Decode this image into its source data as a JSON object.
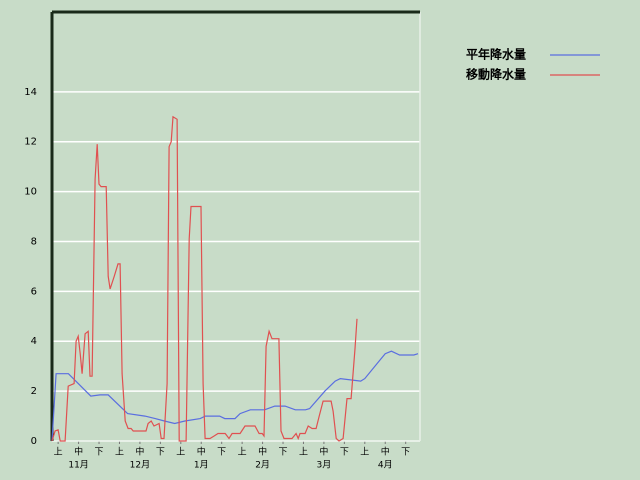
{
  "chart_data": {
    "type": "line",
    "xlim": [
      -3,
      177
    ],
    "xticks": [
      {
        "value": 0,
        "label": "上"
      },
      {
        "value": 10,
        "label": "中"
      },
      {
        "value": 20,
        "label": "下"
      },
      {
        "value": 30,
        "label": "上"
      },
      {
        "value": 40,
        "label": "中"
      },
      {
        "value": 50,
        "label": "下"
      },
      {
        "value": 60,
        "label": "上"
      },
      {
        "value": 70,
        "label": "中"
      },
      {
        "value": 80,
        "label": "下"
      },
      {
        "value": 90,
        "label": "上"
      },
      {
        "value": 100,
        "label": "中"
      },
      {
        "value": 110,
        "label": "下"
      },
      {
        "value": 120,
        "label": "上"
      },
      {
        "value": 130,
        "label": "中"
      },
      {
        "value": 140,
        "label": "下"
      },
      {
        "value": 150,
        "label": "上"
      },
      {
        "value": 160,
        "label": "中"
      },
      {
        "value": 170,
        "label": "下"
      }
    ],
    "month_labels": [
      {
        "value": 10,
        "label": "11月"
      },
      {
        "value": 40,
        "label": "12月"
      },
      {
        "value": 70,
        "label": "1月"
      },
      {
        "value": 100,
        "label": "2月"
      },
      {
        "value": 130,
        "label": "3月"
      },
      {
        "value": 160,
        "label": "4月"
      }
    ],
    "ylim": [
      0,
      17.2
    ],
    "yticks": [
      0,
      2,
      4,
      6,
      8,
      10,
      12,
      14
    ],
    "grid": true,
    "legend": "right",
    "series": [
      {
        "name": "平年降水量",
        "color": "#5a6ee0",
        "x": [
          -3,
          -1,
          5,
          16,
          20.5,
          24.5,
          34,
          42.5,
          47.5,
          52,
          57,
          62,
          69.5,
          72,
          79,
          81.5,
          86.5,
          89,
          94,
          101,
          106,
          111,
          116,
          121,
          123,
          130.5,
          135.5,
          138,
          148,
          150,
          160,
          163,
          167,
          174,
          176
        ],
        "values": [
          0,
          2.7,
          2.7,
          1.8,
          1.85,
          1.85,
          1.1,
          1.0,
          0.9,
          0.8,
          0.7,
          0.8,
          0.9,
          1.0,
          1.0,
          0.9,
          0.9,
          1.1,
          1.25,
          1.25,
          1.4,
          1.4,
          1.25,
          1.25,
          1.3,
          2.0,
          2.4,
          2.5,
          2.4,
          2.5,
          3.5,
          3.6,
          3.45,
          3.45,
          3.5
        ]
      },
      {
        "name": "移動降水量",
        "color": "#e05050",
        "x": [
          -3,
          -1.5,
          0,
          1,
          3.4,
          4.9,
          7.8,
          8.8,
          9.8,
          10.8,
          11.7,
          13.2,
          14.7,
          15.6,
          16.6,
          18.1,
          19.1,
          20,
          21,
          23.5,
          24.5,
          25.4,
          27.4,
          29.3,
          30.3,
          31.3,
          32.8,
          34.2,
          35.7,
          36.7,
          39.1,
          41.6,
          43,
          44,
          45.5,
          46.9,
          49.4,
          50.4,
          51.8,
          53.3,
          54.3,
          55.3,
          56.2,
          58.2,
          59.2,
          62.6,
          64.1,
          65,
          69.9,
          70.9,
          71.9,
          74.3,
          76.3,
          78.2,
          81.7,
          83.6,
          85.1,
          89,
          91.4,
          93.9,
          96.3,
          98.3,
          99.8,
          100.7,
          101.7,
          103.2,
          104.6,
          108,
          109,
          110.5,
          112.5,
          114.4,
          116.4,
          117.4,
          118.3,
          120.8,
          122.3,
          124.2,
          126.2,
          127.7,
          129.6,
          133.5,
          134.5,
          136,
          137.4,
          139.4,
          141.3,
          143.3,
          145.2,
          146.2
        ],
        "values": [
          0,
          0.4,
          0.45,
          0,
          0,
          2.2,
          2.3,
          4,
          4.2,
          3.5,
          2.7,
          4.3,
          4.4,
          2.6,
          2.6,
          10.5,
          11.9,
          10.3,
          10.2,
          10.2,
          6.6,
          6.1,
          6.6,
          7.1,
          7.1,
          2.7,
          0.8,
          0.5,
          0.5,
          0.4,
          0.4,
          0.4,
          0.4,
          0.7,
          0.8,
          0.6,
          0.7,
          0.1,
          0.1,
          2.3,
          11.8,
          12,
          13,
          12.9,
          0,
          0,
          8.1,
          9.4,
          9.4,
          2.3,
          0.1,
          0.1,
          0.2,
          0.3,
          0.3,
          0.1,
          0.3,
          0.3,
          0.6,
          0.6,
          0.6,
          0.3,
          0.3,
          0.2,
          3.8,
          4.4,
          4.1,
          4.1,
          0.4,
          0.1,
          0.1,
          0.1,
          0.3,
          0.1,
          0.3,
          0.3,
          0.6,
          0.5,
          0.5,
          1,
          1.6,
          1.6,
          1.2,
          0.1,
          0,
          0.1,
          1.7,
          1.7,
          3.7,
          4.9
        ]
      }
    ]
  }
}
